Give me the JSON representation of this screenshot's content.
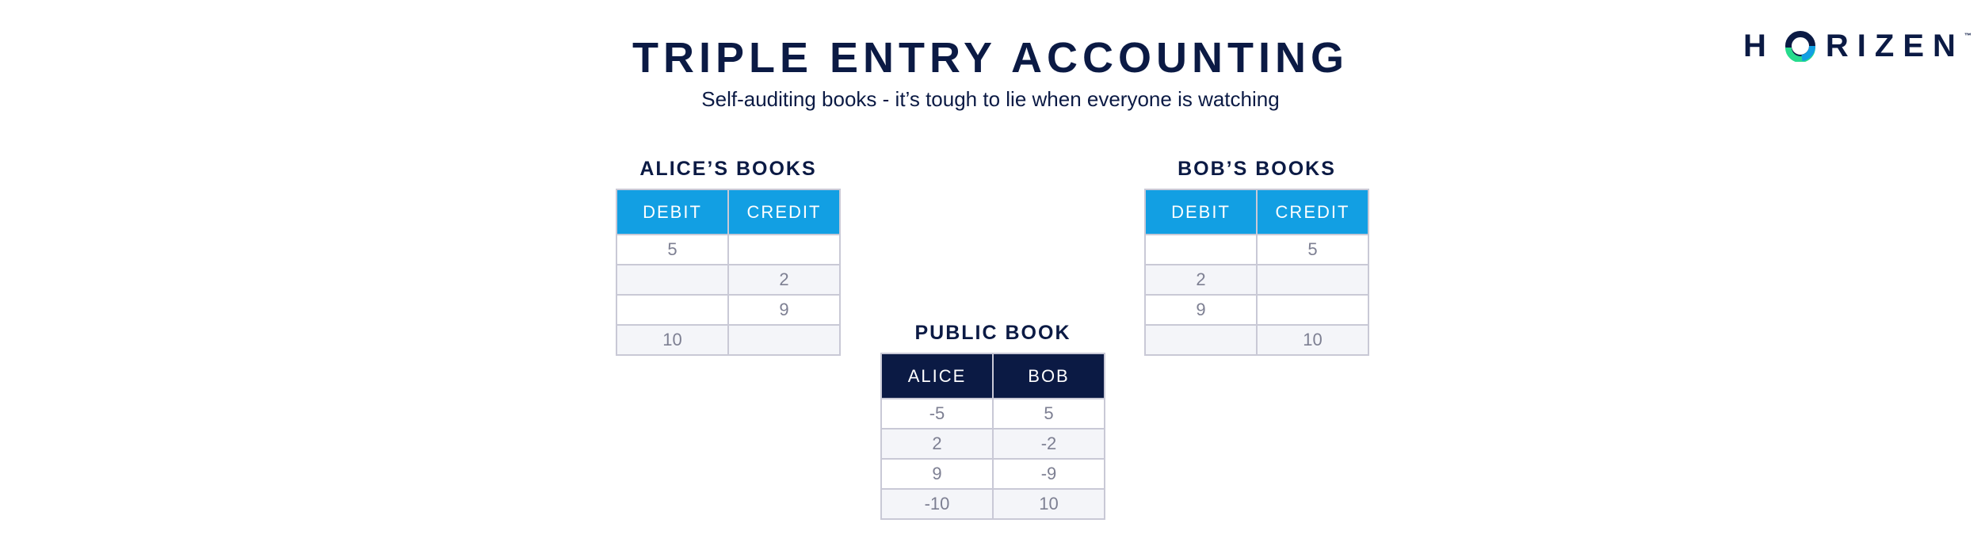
{
  "header": {
    "title": "TRIPLE ENTRY ACCOUNTING",
    "subtitle": "Self-auditing books - it’s tough to lie when everyone is watching"
  },
  "logo": {
    "letters": [
      "H",
      "R",
      "I",
      "Z",
      "E",
      "N"
    ],
    "wordmark": "HORIZEN",
    "trademark": "™",
    "colors": {
      "primary": "#0b1a44",
      "accent_teal": "#26db8d",
      "accent_blue": "#129fe3"
    }
  },
  "alice_book": {
    "title": "ALICE’S BOOKS",
    "columns": [
      "DEBIT",
      "CREDIT"
    ],
    "rows": [
      [
        "5",
        ""
      ],
      [
        "",
        "2"
      ],
      [
        "",
        "9"
      ],
      [
        "10",
        ""
      ]
    ]
  },
  "bob_book": {
    "title": "BOB’S BOOKS",
    "columns": [
      "DEBIT",
      "CREDIT"
    ],
    "rows": [
      [
        "",
        "5"
      ],
      [
        "2",
        ""
      ],
      [
        "9",
        ""
      ],
      [
        "",
        "10"
      ]
    ]
  },
  "public_book": {
    "title": "PUBLIC BOOK",
    "columns": [
      "ALICE",
      "BOB"
    ],
    "rows": [
      [
        "-5",
        "5"
      ],
      [
        "2",
        "-2"
      ],
      [
        "9",
        "-9"
      ],
      [
        "-10",
        "10"
      ]
    ]
  },
  "colors": {
    "header_blue": "#129fe3",
    "header_navy": "#0b1a44",
    "text_navy": "#0b1a44",
    "cell_text": "#7d7f92",
    "border": "#c9c9d6"
  }
}
